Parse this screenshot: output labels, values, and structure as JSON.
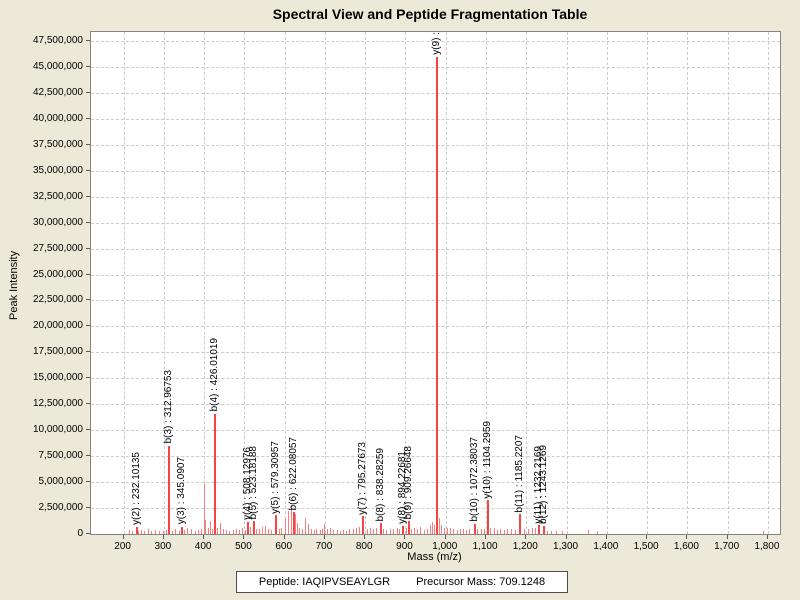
{
  "chart_data": {
    "type": "bar",
    "subtype": "mass-spectrum-sticks",
    "title": "Spectral View and Peptide Fragmentation Table",
    "xlabel": "Mass (m/z)",
    "ylabel": "Peak Intensity",
    "xlim": [
      119,
      1830
    ],
    "ylim": [
      0,
      48370000
    ],
    "grid": true,
    "colors": {
      "page_background": "#ece9d8",
      "plot_background": "#ffffff",
      "gridline": "#cccccc",
      "plot_border": "#848484",
      "peak": "#f87f7f",
      "peak_strong": "#f54444"
    },
    "yticks": [
      {
        "value": 0,
        "label": "0"
      },
      {
        "value": 2500000,
        "label": "2,500,000"
      },
      {
        "value": 5000000,
        "label": "5,000,000"
      },
      {
        "value": 7500000,
        "label": "7,500,000"
      },
      {
        "value": 10000000,
        "label": "10,000,000"
      },
      {
        "value": 12500000,
        "label": "12,500,000"
      },
      {
        "value": 15000000,
        "label": "15,000,000"
      },
      {
        "value": 17500000,
        "label": "17,500,000"
      },
      {
        "value": 20000000,
        "label": "20,000,000"
      },
      {
        "value": 22500000,
        "label": "22,500,000"
      },
      {
        "value": 25000000,
        "label": "25,000,000"
      },
      {
        "value": 27500000,
        "label": "27,500,000"
      },
      {
        "value": 30000000,
        "label": "30,000,000"
      },
      {
        "value": 32500000,
        "label": "32,500,000"
      },
      {
        "value": 35000000,
        "label": "35,000,000"
      },
      {
        "value": 37500000,
        "label": "37,500,000"
      },
      {
        "value": 40000000,
        "label": "40,000,000"
      },
      {
        "value": 42500000,
        "label": "42,500,000"
      },
      {
        "value": 45000000,
        "label": "45,000,000"
      },
      {
        "value": 47500000,
        "label": "47,500,000"
      }
    ],
    "xticks": [
      {
        "value": 200,
        "label": "200"
      },
      {
        "value": 300,
        "label": "300"
      },
      {
        "value": 400,
        "label": "400"
      },
      {
        "value": 500,
        "label": "500"
      },
      {
        "value": 600,
        "label": "600"
      },
      {
        "value": 700,
        "label": "700"
      },
      {
        "value": 800,
        "label": "800"
      },
      {
        "value": 900,
        "label": "900"
      },
      {
        "value": 1000,
        "label": "1,000"
      },
      {
        "value": 1100,
        "label": "1,100"
      },
      {
        "value": 1200,
        "label": "1,200"
      },
      {
        "value": 1300,
        "label": "1,300"
      },
      {
        "value": 1400,
        "label": "1,400"
      },
      {
        "value": 1500,
        "label": "1,500"
      },
      {
        "value": 1600,
        "label": "1,600"
      },
      {
        "value": 1700,
        "label": "1,700"
      },
      {
        "value": 1800,
        "label": "1,800"
      }
    ],
    "labeled_peaks": [
      {
        "label": "y(2) : 232.10135",
        "mz": 232.1,
        "intensity": 650000
      },
      {
        "label": "b(3) : 312.96753",
        "mz": 313.0,
        "intensity": 8500000
      },
      {
        "label": "y(3) : 345.0907",
        "mz": 345.1,
        "intensity": 700000
      },
      {
        "label": "b(4) : 426.01019",
        "mz": 426.0,
        "intensity": 11600000
      },
      {
        "label": "y(4) : 508.12976",
        "mz": 508.1,
        "intensity": 1150000
      },
      {
        "label": "b(5) : 523.18188",
        "mz": 523.2,
        "intensity": 1250000
      },
      {
        "label": "y(5) : 579.30957",
        "mz": 579.3,
        "intensity": 1800000
      },
      {
        "label": "b(6) : 622.08057",
        "mz": 622.1,
        "intensity": 2100000
      },
      {
        "label": "y(7) : 795.27673",
        "mz": 795.3,
        "intensity": 1700000
      },
      {
        "label": "b(8) : 838.28259",
        "mz": 838.3,
        "intensity": 1050000
      },
      {
        "label": "y(8) : 894.22681",
        "mz": 894.2,
        "intensity": 800000
      },
      {
        "label": "b(9) : 909.26648",
        "mz": 909.3,
        "intensity": 1250000
      },
      {
        "label": "y(9) :",
        "mz": 978.0,
        "intensity": 46000000
      },
      {
        "label": "b(10) : 1072.38037",
        "mz": 1072.4,
        "intensity": 1000000
      },
      {
        "label": "y(10) : 1104.2959",
        "mz": 1104.3,
        "intensity": 3250000
      },
      {
        "label": "b(11) : 1185.2207",
        "mz": 1185.2,
        "intensity": 1900000
      },
      {
        "label": "y(11) : 1232.2169",
        "mz": 1232.2,
        "intensity": 850000
      },
      {
        "label": "b(12) : 1243.1269",
        "mz": 1243.1,
        "intensity": 750000
      }
    ],
    "noise_peaks": [
      [
        215,
        350000
      ],
      [
        222,
        250000
      ],
      [
        238,
        300000
      ],
      [
        245,
        350000
      ],
      [
        252,
        250000
      ],
      [
        262,
        450000
      ],
      [
        270,
        300000
      ],
      [
        278,
        350000
      ],
      [
        290,
        250000
      ],
      [
        298,
        300000
      ],
      [
        306,
        350000
      ],
      [
        322,
        300000
      ],
      [
        330,
        450000
      ],
      [
        338,
        300000
      ],
      [
        352,
        400000
      ],
      [
        358,
        550000
      ],
      [
        368,
        450000
      ],
      [
        378,
        300000
      ],
      [
        386,
        350000
      ],
      [
        394,
        500000
      ],
      [
        400,
        4800000
      ],
      [
        404,
        1350000
      ],
      [
        410,
        600000
      ],
      [
        415,
        1300000
      ],
      [
        420,
        500000
      ],
      [
        433,
        600000
      ],
      [
        440,
        1050000
      ],
      [
        447,
        450000
      ],
      [
        456,
        350000
      ],
      [
        464,
        300000
      ],
      [
        472,
        350000
      ],
      [
        480,
        450000
      ],
      [
        488,
        350000
      ],
      [
        496,
        550000
      ],
      [
        503,
        400000
      ],
      [
        515,
        650000
      ],
      [
        530,
        500000
      ],
      [
        537,
        450000
      ],
      [
        544,
        650000
      ],
      [
        552,
        800000
      ],
      [
        560,
        450000
      ],
      [
        568,
        350000
      ],
      [
        586,
        450000
      ],
      [
        593,
        550000
      ],
      [
        603,
        1400000
      ],
      [
        610,
        2200000
      ],
      [
        616,
        2800000
      ],
      [
        627,
        1900000
      ],
      [
        632,
        1100000
      ],
      [
        638,
        600000
      ],
      [
        645,
        500000
      ],
      [
        652,
        1500000
      ],
      [
        658,
        950000
      ],
      [
        666,
        450000
      ],
      [
        673,
        350000
      ],
      [
        680,
        500000
      ],
      [
        688,
        400000
      ],
      [
        695,
        450000
      ],
      [
        700,
        950000
      ],
      [
        706,
        500000
      ],
      [
        714,
        550000
      ],
      [
        722,
        400000
      ],
      [
        730,
        350000
      ],
      [
        738,
        300000
      ],
      [
        746,
        400000
      ],
      [
        754,
        300000
      ],
      [
        762,
        450000
      ],
      [
        770,
        500000
      ],
      [
        778,
        550000
      ],
      [
        786,
        650000
      ],
      [
        805,
        450000
      ],
      [
        812,
        550000
      ],
      [
        820,
        450000
      ],
      [
        828,
        600000
      ],
      [
        846,
        500000
      ],
      [
        854,
        400000
      ],
      [
        862,
        450000
      ],
      [
        870,
        500000
      ],
      [
        880,
        550000
      ],
      [
        886,
        450000
      ],
      [
        902,
        550000
      ],
      [
        916,
        500000
      ],
      [
        922,
        550000
      ],
      [
        930,
        450000
      ],
      [
        938,
        650000
      ],
      [
        946,
        400000
      ],
      [
        954,
        500000
      ],
      [
        962,
        850000
      ],
      [
        968,
        1200000
      ],
      [
        973,
        900000
      ],
      [
        984,
        1500000
      ],
      [
        990,
        900000
      ],
      [
        996,
        600000
      ],
      [
        1004,
        550000
      ],
      [
        1012,
        600000
      ],
      [
        1020,
        450000
      ],
      [
        1028,
        400000
      ],
      [
        1036,
        500000
      ],
      [
        1044,
        450000
      ],
      [
        1052,
        400000
      ],
      [
        1060,
        450000
      ],
      [
        1080,
        500000
      ],
      [
        1088,
        450000
      ],
      [
        1096,
        500000
      ],
      [
        1112,
        600000
      ],
      [
        1120,
        550000
      ],
      [
        1128,
        400000
      ],
      [
        1136,
        450000
      ],
      [
        1146,
        400000
      ],
      [
        1154,
        450000
      ],
      [
        1164,
        500000
      ],
      [
        1172,
        400000
      ],
      [
        1195,
        500000
      ],
      [
        1205,
        450000
      ],
      [
        1215,
        550000
      ],
      [
        1222,
        600000
      ],
      [
        1252,
        300000
      ],
      [
        1262,
        250000
      ],
      [
        1275,
        300000
      ],
      [
        1290,
        250000
      ],
      [
        1355,
        350000
      ],
      [
        1378,
        300000
      ],
      [
        1790,
        250000
      ]
    ]
  },
  "footer": {
    "peptide": "Peptide: IAQIPVSEAYLGR",
    "precursor": "Precursor Mass: 709.1248"
  }
}
